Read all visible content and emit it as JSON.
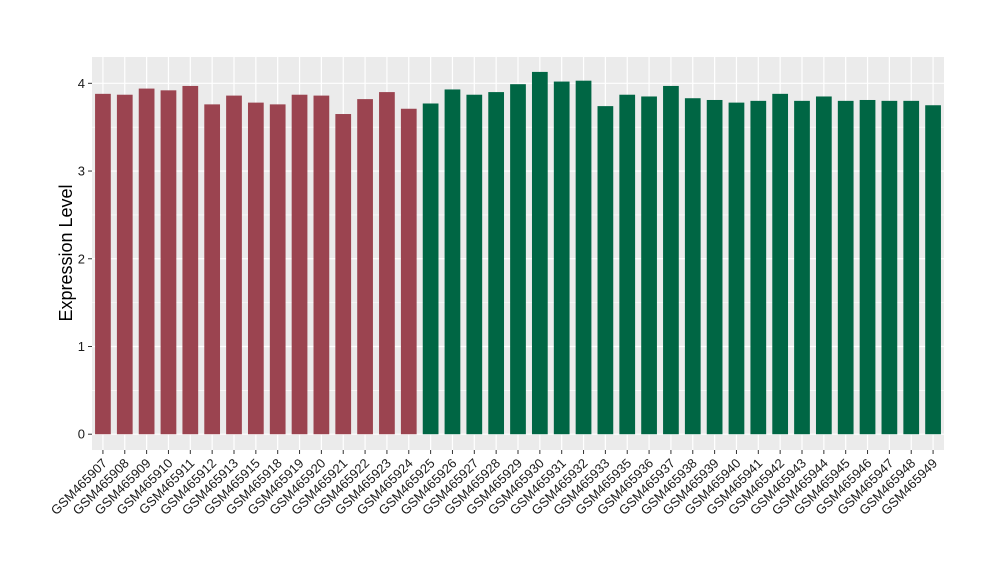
{
  "chart_data": {
    "type": "bar",
    "title": "",
    "xlabel": "",
    "ylabel": "Expression Level",
    "ylim": [
      -0.18,
      4.3
    ],
    "yticks": [
      0,
      1,
      2,
      3,
      4
    ],
    "grid": true,
    "legend": "none",
    "colors": {
      "group1": "#9b4450",
      "group2": "#006644",
      "panel": "#ebebeb",
      "grid": "#ffffff"
    },
    "categories": [
      "GSM465907",
      "GSM465908",
      "GSM465909",
      "GSM465910",
      "GSM465911",
      "GSM465912",
      "GSM465913",
      "GSM465915",
      "GSM465918",
      "GSM465919",
      "GSM465920",
      "GSM465921",
      "GSM465922",
      "GSM465923",
      "GSM465924",
      "GSM465925",
      "GSM465926",
      "GSM465927",
      "GSM465928",
      "GSM465929",
      "GSM465930",
      "GSM465931",
      "GSM465932",
      "GSM465933",
      "GSM465935",
      "GSM465936",
      "GSM465937",
      "GSM465938",
      "GSM465939",
      "GSM465940",
      "GSM465941",
      "GSM465942",
      "GSM465943",
      "GSM465944",
      "GSM465945",
      "GSM465946",
      "GSM465947",
      "GSM465948",
      "GSM465949"
    ],
    "values": [
      3.88,
      3.87,
      3.94,
      3.92,
      3.97,
      3.76,
      3.86,
      3.78,
      3.76,
      3.87,
      3.86,
      3.65,
      3.82,
      3.9,
      3.71,
      3.77,
      3.93,
      3.87,
      3.9,
      3.99,
      4.13,
      4.02,
      4.03,
      3.74,
      3.87,
      3.85,
      3.97,
      3.83,
      3.81,
      3.78,
      3.8,
      3.88,
      3.8,
      3.85,
      3.8,
      3.81,
      3.8,
      3.8,
      3.75
    ],
    "groups": [
      1,
      1,
      1,
      1,
      1,
      1,
      1,
      1,
      1,
      1,
      1,
      1,
      1,
      1,
      1,
      2,
      2,
      2,
      2,
      2,
      2,
      2,
      2,
      2,
      2,
      2,
      2,
      2,
      2,
      2,
      2,
      2,
      2,
      2,
      2,
      2,
      2,
      2,
      2
    ]
  }
}
